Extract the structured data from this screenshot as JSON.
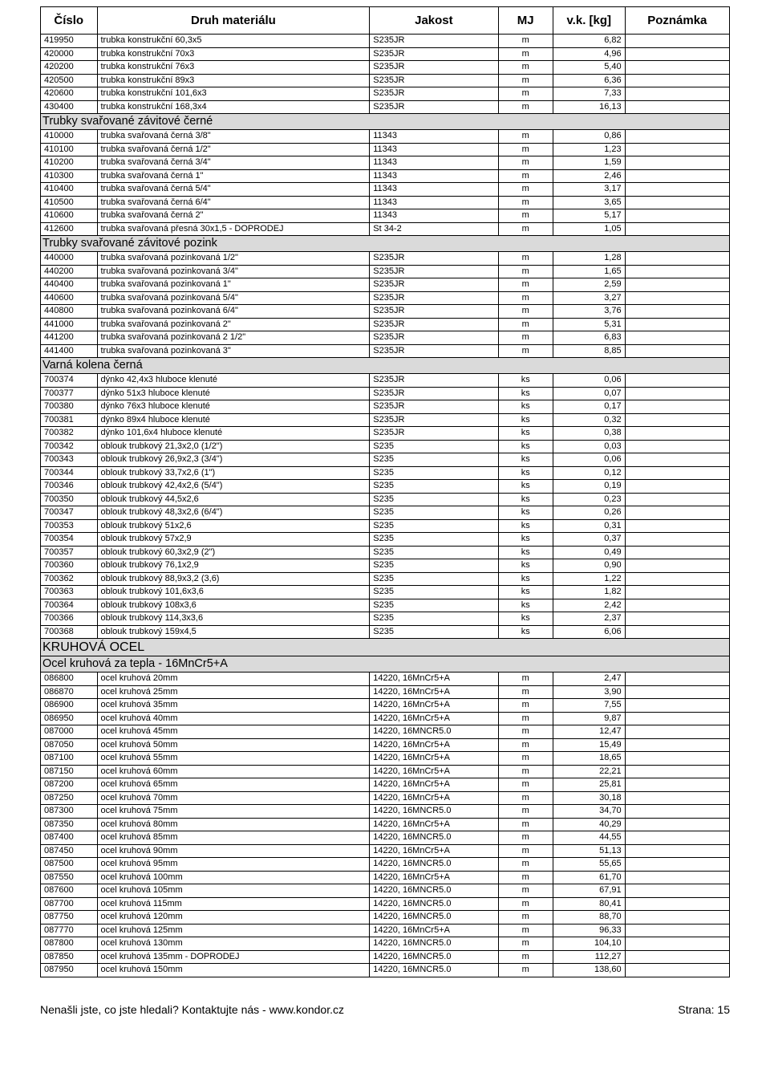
{
  "header": {
    "cislo": "Číslo",
    "druh": "Druh materiálu",
    "jakost": "Jakost",
    "mj": "MJ",
    "vk": "v.k. [kg]",
    "poznamka": "Poznámka"
  },
  "footer": {
    "left": "Nenašli jste, co jste hledali? Kontaktujte nás - www.kondor.cz",
    "right": "Strana: 15"
  },
  "rows": [
    {
      "t": "d",
      "c": "419950",
      "d": "trubka konstrukční 60,3x5",
      "j": "S235JR",
      "m": "m",
      "v": "6,82",
      "p": ""
    },
    {
      "t": "d",
      "c": "420000",
      "d": "trubka konstrukční 70x3",
      "j": "S235JR",
      "m": "m",
      "v": "4,96",
      "p": ""
    },
    {
      "t": "d",
      "c": "420200",
      "d": "trubka konstrukční 76x3",
      "j": "S235JR",
      "m": "m",
      "v": "5,40",
      "p": ""
    },
    {
      "t": "d",
      "c": "420500",
      "d": "trubka konstrukční 89x3",
      "j": "S235JR",
      "m": "m",
      "v": "6,36",
      "p": ""
    },
    {
      "t": "d",
      "c": "420600",
      "d": "trubka konstrukční 101,6x3",
      "j": "S235JR",
      "m": "m",
      "v": "7,33",
      "p": ""
    },
    {
      "t": "d",
      "c": "430400",
      "d": "trubka konstrukční 168,3x4",
      "j": "S235JR",
      "m": "m",
      "v": "16,13",
      "p": ""
    },
    {
      "t": "s",
      "label": "Trubky svařované závitové černé"
    },
    {
      "t": "d",
      "c": "410000",
      "d": "trubka svařovaná černá 3/8\"",
      "j": "11343",
      "m": "m",
      "v": "0,86",
      "p": ""
    },
    {
      "t": "d",
      "c": "410100",
      "d": "trubka svařovaná černá 1/2\"",
      "j": "11343",
      "m": "m",
      "v": "1,23",
      "p": ""
    },
    {
      "t": "d",
      "c": "410200",
      "d": "trubka svařovaná černá 3/4\"",
      "j": "11343",
      "m": "m",
      "v": "1,59",
      "p": ""
    },
    {
      "t": "d",
      "c": "410300",
      "d": "trubka svařovaná černá 1\"",
      "j": "11343",
      "m": "m",
      "v": "2,46",
      "p": ""
    },
    {
      "t": "d",
      "c": "410400",
      "d": "trubka svařovaná černá 5/4\"",
      "j": "11343",
      "m": "m",
      "v": "3,17",
      "p": ""
    },
    {
      "t": "d",
      "c": "410500",
      "d": "trubka svařovaná černá 6/4\"",
      "j": "11343",
      "m": "m",
      "v": "3,65",
      "p": ""
    },
    {
      "t": "d",
      "c": "410600",
      "d": "trubka svařovaná černá 2\"",
      "j": "11343",
      "m": "m",
      "v": "5,17",
      "p": ""
    },
    {
      "t": "d",
      "c": "412600",
      "d": "trubka svařovaná přesná 30x1,5 - DOPRODEJ",
      "j": "St 34-2",
      "m": "m",
      "v": "1,05",
      "p": ""
    },
    {
      "t": "s",
      "label": "Trubky svařované závitové pozink"
    },
    {
      "t": "d",
      "c": "440000",
      "d": "trubka svařovaná pozinkovaná 1/2\"",
      "j": "S235JR",
      "m": "m",
      "v": "1,28",
      "p": ""
    },
    {
      "t": "d",
      "c": "440200",
      "d": "trubka svařovaná pozinkovaná 3/4\"",
      "j": "S235JR",
      "m": "m",
      "v": "1,65",
      "p": ""
    },
    {
      "t": "d",
      "c": "440400",
      "d": "trubka svařovaná pozinkovaná 1\"",
      "j": "S235JR",
      "m": "m",
      "v": "2,59",
      "p": ""
    },
    {
      "t": "d",
      "c": "440600",
      "d": "trubka svařovaná pozinkovaná 5/4\"",
      "j": "S235JR",
      "m": "m",
      "v": "3,27",
      "p": ""
    },
    {
      "t": "d",
      "c": "440800",
      "d": "trubka svařovaná pozinkovaná 6/4\"",
      "j": "S235JR",
      "m": "m",
      "v": "3,76",
      "p": ""
    },
    {
      "t": "d",
      "c": "441000",
      "d": "trubka svařovaná pozinkovaná 2\"",
      "j": "S235JR",
      "m": "m",
      "v": "5,31",
      "p": ""
    },
    {
      "t": "d",
      "c": "441200",
      "d": "trubka svařovaná pozinkovaná 2 1/2\"",
      "j": "S235JR",
      "m": "m",
      "v": "6,83",
      "p": ""
    },
    {
      "t": "d",
      "c": "441400",
      "d": "trubka svařovaná pozinkovaná 3\"",
      "j": "S235JR",
      "m": "m",
      "v": "8,85",
      "p": ""
    },
    {
      "t": "s",
      "label": "Varná kolena černá"
    },
    {
      "t": "d",
      "c": "700374",
      "d": "dýnko 42,4x3 hluboce klenuté",
      "j": "S235JR",
      "m": "ks",
      "v": "0,06",
      "p": ""
    },
    {
      "t": "d",
      "c": "700377",
      "d": "dýnko 51x3 hluboce klenuté",
      "j": "S235JR",
      "m": "ks",
      "v": "0,07",
      "p": ""
    },
    {
      "t": "d",
      "c": "700380",
      "d": "dýnko 76x3 hluboce klenuté",
      "j": "S235JR",
      "m": "ks",
      "v": "0,17",
      "p": ""
    },
    {
      "t": "d",
      "c": "700381",
      "d": "dýnko 89x4 hluboce klenuté",
      "j": "S235JR",
      "m": "ks",
      "v": "0,32",
      "p": ""
    },
    {
      "t": "d",
      "c": "700382",
      "d": "dýnko 101,6x4 hluboce klenuté",
      "j": "S235JR",
      "m": "ks",
      "v": "0,38",
      "p": ""
    },
    {
      "t": "d",
      "c": "700342",
      "d": "oblouk trubkový 21,3x2,0 (1/2\")",
      "j": "S235",
      "m": "ks",
      "v": "0,03",
      "p": ""
    },
    {
      "t": "d",
      "c": "700343",
      "d": "oblouk trubkový 26,9x2,3 (3/4\")",
      "j": "S235",
      "m": "ks",
      "v": "0,06",
      "p": ""
    },
    {
      "t": "d",
      "c": "700344",
      "d": "oblouk trubkový 33,7x2,6 (1\")",
      "j": "S235",
      "m": "ks",
      "v": "0,12",
      "p": ""
    },
    {
      "t": "d",
      "c": "700346",
      "d": "oblouk trubkový 42,4x2,6 (5/4\")",
      "j": "S235",
      "m": "ks",
      "v": "0,19",
      "p": ""
    },
    {
      "t": "d",
      "c": "700350",
      "d": "oblouk trubkový 44,5x2,6",
      "j": "S235",
      "m": "ks",
      "v": "0,23",
      "p": ""
    },
    {
      "t": "d",
      "c": "700347",
      "d": "oblouk trubkový 48,3x2,6 (6/4\")",
      "j": "S235",
      "m": "ks",
      "v": "0,26",
      "p": ""
    },
    {
      "t": "d",
      "c": "700353",
      "d": "oblouk trubkový 51x2,6",
      "j": "S235",
      "m": "ks",
      "v": "0,31",
      "p": ""
    },
    {
      "t": "d",
      "c": "700354",
      "d": "oblouk trubkový 57x2,9",
      "j": "S235",
      "m": "ks",
      "v": "0,37",
      "p": ""
    },
    {
      "t": "d",
      "c": "700357",
      "d": "oblouk trubkový 60,3x2,9 (2\")",
      "j": "S235",
      "m": "ks",
      "v": "0,49",
      "p": ""
    },
    {
      "t": "d",
      "c": "700360",
      "d": "oblouk trubkový 76,1x2,9",
      "j": "S235",
      "m": "ks",
      "v": "0,90",
      "p": ""
    },
    {
      "t": "d",
      "c": "700362",
      "d": "oblouk trubkový 88,9x3,2 (3,6)",
      "j": "S235",
      "m": "ks",
      "v": "1,22",
      "p": ""
    },
    {
      "t": "d",
      "c": "700363",
      "d": "oblouk trubkový 101,6x3,6",
      "j": "S235",
      "m": "ks",
      "v": "1,82",
      "p": ""
    },
    {
      "t": "d",
      "c": "700364",
      "d": "oblouk trubkový 108x3,6",
      "j": "S235",
      "m": "ks",
      "v": "2,42",
      "p": ""
    },
    {
      "t": "d",
      "c": "700366",
      "d": "oblouk trubkový 114,3x3,6",
      "j": "S235",
      "m": "ks",
      "v": "2,37",
      "p": ""
    },
    {
      "t": "d",
      "c": "700368",
      "d": "oblouk trubkový 159x4,5",
      "j": "S235",
      "m": "ks",
      "v": "6,06",
      "p": ""
    },
    {
      "t": "sh",
      "label": "KRUHOVÁ OCEL"
    },
    {
      "t": "s",
      "label": "Ocel kruhová za tepla - 16MnCr5+A"
    },
    {
      "t": "d",
      "c": "086800",
      "d": "ocel kruhová 20mm",
      "j": "14220, 16MnCr5+A",
      "m": "m",
      "v": "2,47",
      "p": ""
    },
    {
      "t": "d",
      "c": "086870",
      "d": "ocel kruhová 25mm",
      "j": "14220, 16MnCr5+A",
      "m": "m",
      "v": "3,90",
      "p": ""
    },
    {
      "t": "d",
      "c": "086900",
      "d": "ocel kruhová 35mm",
      "j": "14220, 16MnCr5+A",
      "m": "m",
      "v": "7,55",
      "p": ""
    },
    {
      "t": "d",
      "c": "086950",
      "d": "ocel kruhová 40mm",
      "j": "14220, 16MnCr5+A",
      "m": "m",
      "v": "9,87",
      "p": ""
    },
    {
      "t": "d",
      "c": "087000",
      "d": "ocel kruhová 45mm",
      "j": "14220, 16MNCR5.0",
      "m": "m",
      "v": "12,47",
      "p": ""
    },
    {
      "t": "d",
      "c": "087050",
      "d": "ocel kruhová 50mm",
      "j": "14220, 16MnCr5+A",
      "m": "m",
      "v": "15,49",
      "p": ""
    },
    {
      "t": "d",
      "c": "087100",
      "d": "ocel kruhová 55mm",
      "j": "14220, 16MnCr5+A",
      "m": "m",
      "v": "18,65",
      "p": ""
    },
    {
      "t": "d",
      "c": "087150",
      "d": "ocel kruhová 60mm",
      "j": "14220, 16MnCr5+A",
      "m": "m",
      "v": "22,21",
      "p": ""
    },
    {
      "t": "d",
      "c": "087200",
      "d": "ocel kruhová 65mm",
      "j": "14220, 16MnCr5+A",
      "m": "m",
      "v": "25,81",
      "p": ""
    },
    {
      "t": "d",
      "c": "087250",
      "d": "ocel kruhová 70mm",
      "j": "14220, 16MnCr5+A",
      "m": "m",
      "v": "30,18",
      "p": ""
    },
    {
      "t": "d",
      "c": "087300",
      "d": "ocel kruhová 75mm",
      "j": "14220, 16MNCR5.0",
      "m": "m",
      "v": "34,70",
      "p": ""
    },
    {
      "t": "d",
      "c": "087350",
      "d": "ocel kruhová 80mm",
      "j": "14220, 16MnCr5+A",
      "m": "m",
      "v": "40,29",
      "p": ""
    },
    {
      "t": "d",
      "c": "087400",
      "d": "ocel kruhová 85mm",
      "j": "14220, 16MNCR5.0",
      "m": "m",
      "v": "44,55",
      "p": ""
    },
    {
      "t": "d",
      "c": "087450",
      "d": "ocel kruhová 90mm",
      "j": "14220, 16MnCr5+A",
      "m": "m",
      "v": "51,13",
      "p": ""
    },
    {
      "t": "d",
      "c": "087500",
      "d": "ocel kruhová 95mm",
      "j": "14220, 16MNCR5.0",
      "m": "m",
      "v": "55,65",
      "p": ""
    },
    {
      "t": "d",
      "c": "087550",
      "d": "ocel kruhová 100mm",
      "j": "14220, 16MnCr5+A",
      "m": "m",
      "v": "61,70",
      "p": ""
    },
    {
      "t": "d",
      "c": "087600",
      "d": "ocel kruhová 105mm",
      "j": "14220, 16MNCR5.0",
      "m": "m",
      "v": "67,91",
      "p": ""
    },
    {
      "t": "d",
      "c": "087700",
      "d": "ocel kruhová 115mm",
      "j": "14220, 16MNCR5.0",
      "m": "m",
      "v": "80,41",
      "p": ""
    },
    {
      "t": "d",
      "c": "087750",
      "d": "ocel kruhová 120mm",
      "j": "14220, 16MNCR5.0",
      "m": "m",
      "v": "88,70",
      "p": ""
    },
    {
      "t": "d",
      "c": "087770",
      "d": "ocel kruhová 125mm",
      "j": "14220, 16MnCr5+A",
      "m": "m",
      "v": "96,33",
      "p": ""
    },
    {
      "t": "d",
      "c": "087800",
      "d": "ocel kruhová 130mm",
      "j": "14220, 16MNCR5.0",
      "m": "m",
      "v": "104,10",
      "p": ""
    },
    {
      "t": "d",
      "c": "087850",
      "d": "ocel kruhová 135mm - DOPRODEJ",
      "j": "14220, 16MNCR5.0",
      "m": "m",
      "v": "112,27",
      "p": ""
    },
    {
      "t": "d",
      "c": "087950",
      "d": "ocel kruhová 150mm",
      "j": "14220, 16MNCR5.0",
      "m": "m",
      "v": "138,60",
      "p": ""
    }
  ]
}
